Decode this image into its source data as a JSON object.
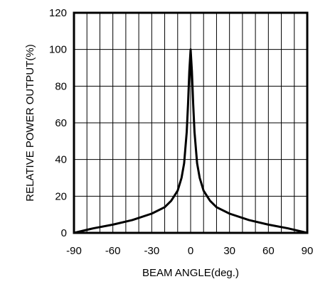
{
  "chart_data": {
    "type": "line",
    "title": "",
    "xlabel": "BEAM ANGLE(deg.)",
    "ylabel": "RELATIVE POWER OUTPUT(%)",
    "xlim": [
      -90,
      90
    ],
    "ylim": [
      0,
      120
    ],
    "xticks": [
      -90,
      -60,
      -30,
      0,
      30,
      60,
      90
    ],
    "yticks": [
      0,
      20,
      40,
      60,
      80,
      100,
      120
    ],
    "grid": {
      "x_step": 10,
      "y_step": 20
    },
    "legend": "none",
    "series": [
      {
        "color": "#000000",
        "x": [
          -90,
          -75,
          -60,
          -45,
          -30,
          -20,
          -15,
          -10,
          -7,
          -5,
          -3,
          -2,
          -1,
          0,
          1,
          2,
          3,
          5,
          7,
          10,
          15,
          20,
          30,
          45,
          60,
          75,
          90
        ],
        "y": [
          0,
          2.5,
          4.5,
          7,
          10.5,
          14,
          17.5,
          23,
          30,
          38,
          55,
          70,
          88,
          100,
          88,
          70,
          55,
          38,
          30,
          23,
          17.5,
          14,
          10.5,
          7,
          4.5,
          2.5,
          0
        ]
      }
    ]
  }
}
